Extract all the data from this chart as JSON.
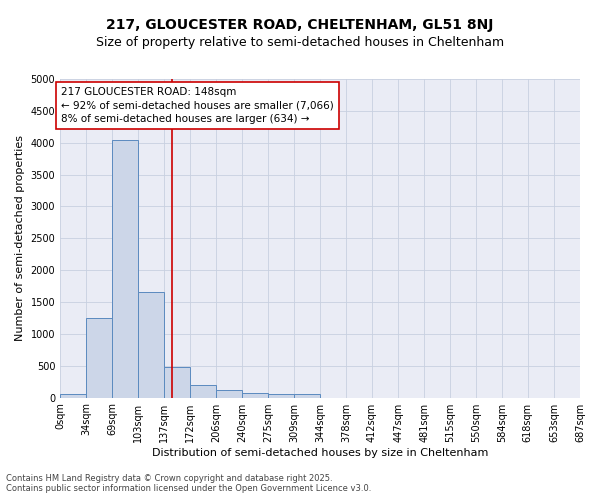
{
  "title1": "217, GLOUCESTER ROAD, CHELTENHAM, GL51 8NJ",
  "title2": "Size of property relative to semi-detached houses in Cheltenham",
  "xlabel": "Distribution of semi-detached houses by size in Cheltenham",
  "ylabel": "Number of semi-detached properties",
  "bin_edges": [
    0,
    34,
    69,
    103,
    137,
    172,
    206,
    240,
    275,
    309,
    344,
    378,
    412,
    447,
    481,
    515,
    550,
    584,
    618,
    653,
    687
  ],
  "bar_heights": [
    50,
    1250,
    4050,
    1650,
    475,
    200,
    125,
    75,
    50,
    50,
    0,
    0,
    0,
    0,
    0,
    0,
    0,
    0,
    0,
    0
  ],
  "bar_color": "#ccd6e8",
  "bar_edgecolor": "#5b8abf",
  "vline_x": 148,
  "vline_color": "#cc0000",
  "ylim": [
    0,
    5000
  ],
  "yticks": [
    0,
    500,
    1000,
    1500,
    2000,
    2500,
    3000,
    3500,
    4000,
    4500,
    5000
  ],
  "annotation_title": "217 GLOUCESTER ROAD: 148sqm",
  "annotation_line1": "← 92% of semi-detached houses are smaller (7,066)",
  "annotation_line2": "8% of semi-detached houses are larger (634) →",
  "grid_color": "#c8d0e0",
  "bg_color": "#eaecf5",
  "footer1": "Contains HM Land Registry data © Crown copyright and database right 2025.",
  "footer2": "Contains public sector information licensed under the Open Government Licence v3.0.",
  "title_fontsize": 10,
  "subtitle_fontsize": 9,
  "label_fontsize": 8,
  "tick_fontsize": 7,
  "annot_fontsize": 7.5
}
